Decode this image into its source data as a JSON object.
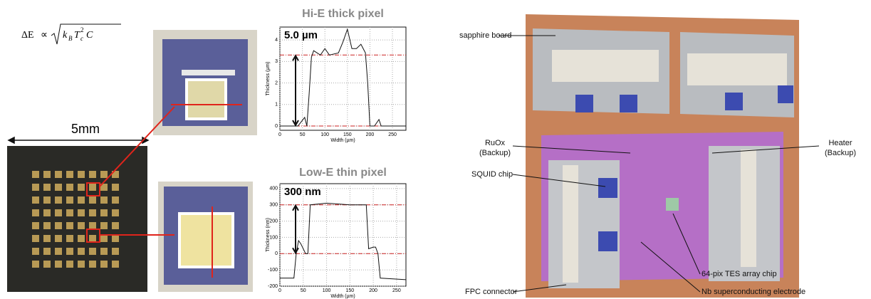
{
  "formula": {
    "parts": [
      "ΔE",
      "∝",
      "k",
      "B",
      "T",
      "c",
      "2",
      "C"
    ]
  },
  "scale_label": "5mm",
  "chart_data": [
    {
      "type": "line",
      "title": "Hi-E thick pixel",
      "annotation": "5.0 µm",
      "xlabel": "Width (µm)",
      "ylabel": "Thickness (µm)",
      "x": [
        0,
        40,
        55,
        60,
        65,
        70,
        75,
        90,
        100,
        110,
        130,
        140,
        150,
        160,
        170,
        180,
        190,
        195,
        200,
        210,
        220,
        225,
        280
      ],
      "values": [
        0,
        0,
        0.4,
        0,
        1.5,
        3.2,
        3.5,
        3.3,
        3.6,
        3.3,
        3.4,
        3.9,
        4.5,
        3.6,
        3.6,
        3.8,
        3.4,
        2,
        0,
        0,
        0.3,
        0,
        0
      ],
      "color": "#111111",
      "reference_lines": [
        0,
        3.3
      ],
      "reference_color": "#cc2222",
      "xlim": [
        0,
        280
      ],
      "ylim": [
        -0.2,
        4.6
      ],
      "xticks": [
        0,
        50,
        100,
        150,
        200,
        250
      ],
      "yticks": [
        0,
        1,
        2,
        3,
        4
      ],
      "grid": true
    },
    {
      "type": "line",
      "title": "Low-E thin pixel",
      "annotation": "300 nm",
      "xlabel": "Width (µm)",
      "ylabel": "Thickness (nm)",
      "x": [
        0,
        30,
        35,
        40,
        45,
        55,
        60,
        65,
        100,
        150,
        185,
        190,
        200,
        205,
        210,
        215,
        270
      ],
      "values": [
        -150,
        -150,
        0,
        80,
        60,
        0,
        0,
        300,
        310,
        300,
        300,
        30,
        40,
        40,
        0,
        -150,
        -160
      ],
      "color": "#111111",
      "reference_lines": [
        0,
        300
      ],
      "reference_color": "#cc2222",
      "xlim": [
        0,
        270
      ],
      "ylim": [
        -200,
        430
      ],
      "xticks": [
        0,
        50,
        100,
        150,
        200,
        250
      ],
      "yticks": [
        -200,
        -100,
        0,
        100,
        200,
        300,
        400
      ],
      "grid": true
    }
  ],
  "photo_labels": [
    {
      "lines": [
        "sapphire board"
      ]
    },
    {
      "lines": [
        "RuOx",
        "(Backup)"
      ]
    },
    {
      "lines": [
        "Heater",
        "(Backup)"
      ]
    },
    {
      "lines": [
        "SQUID chip"
      ]
    },
    {
      "lines": [
        "FPC connector"
      ]
    },
    {
      "lines": [
        "64-pix TES array chip"
      ]
    },
    {
      "lines": [
        "Nb superconducting electrode"
      ]
    }
  ]
}
